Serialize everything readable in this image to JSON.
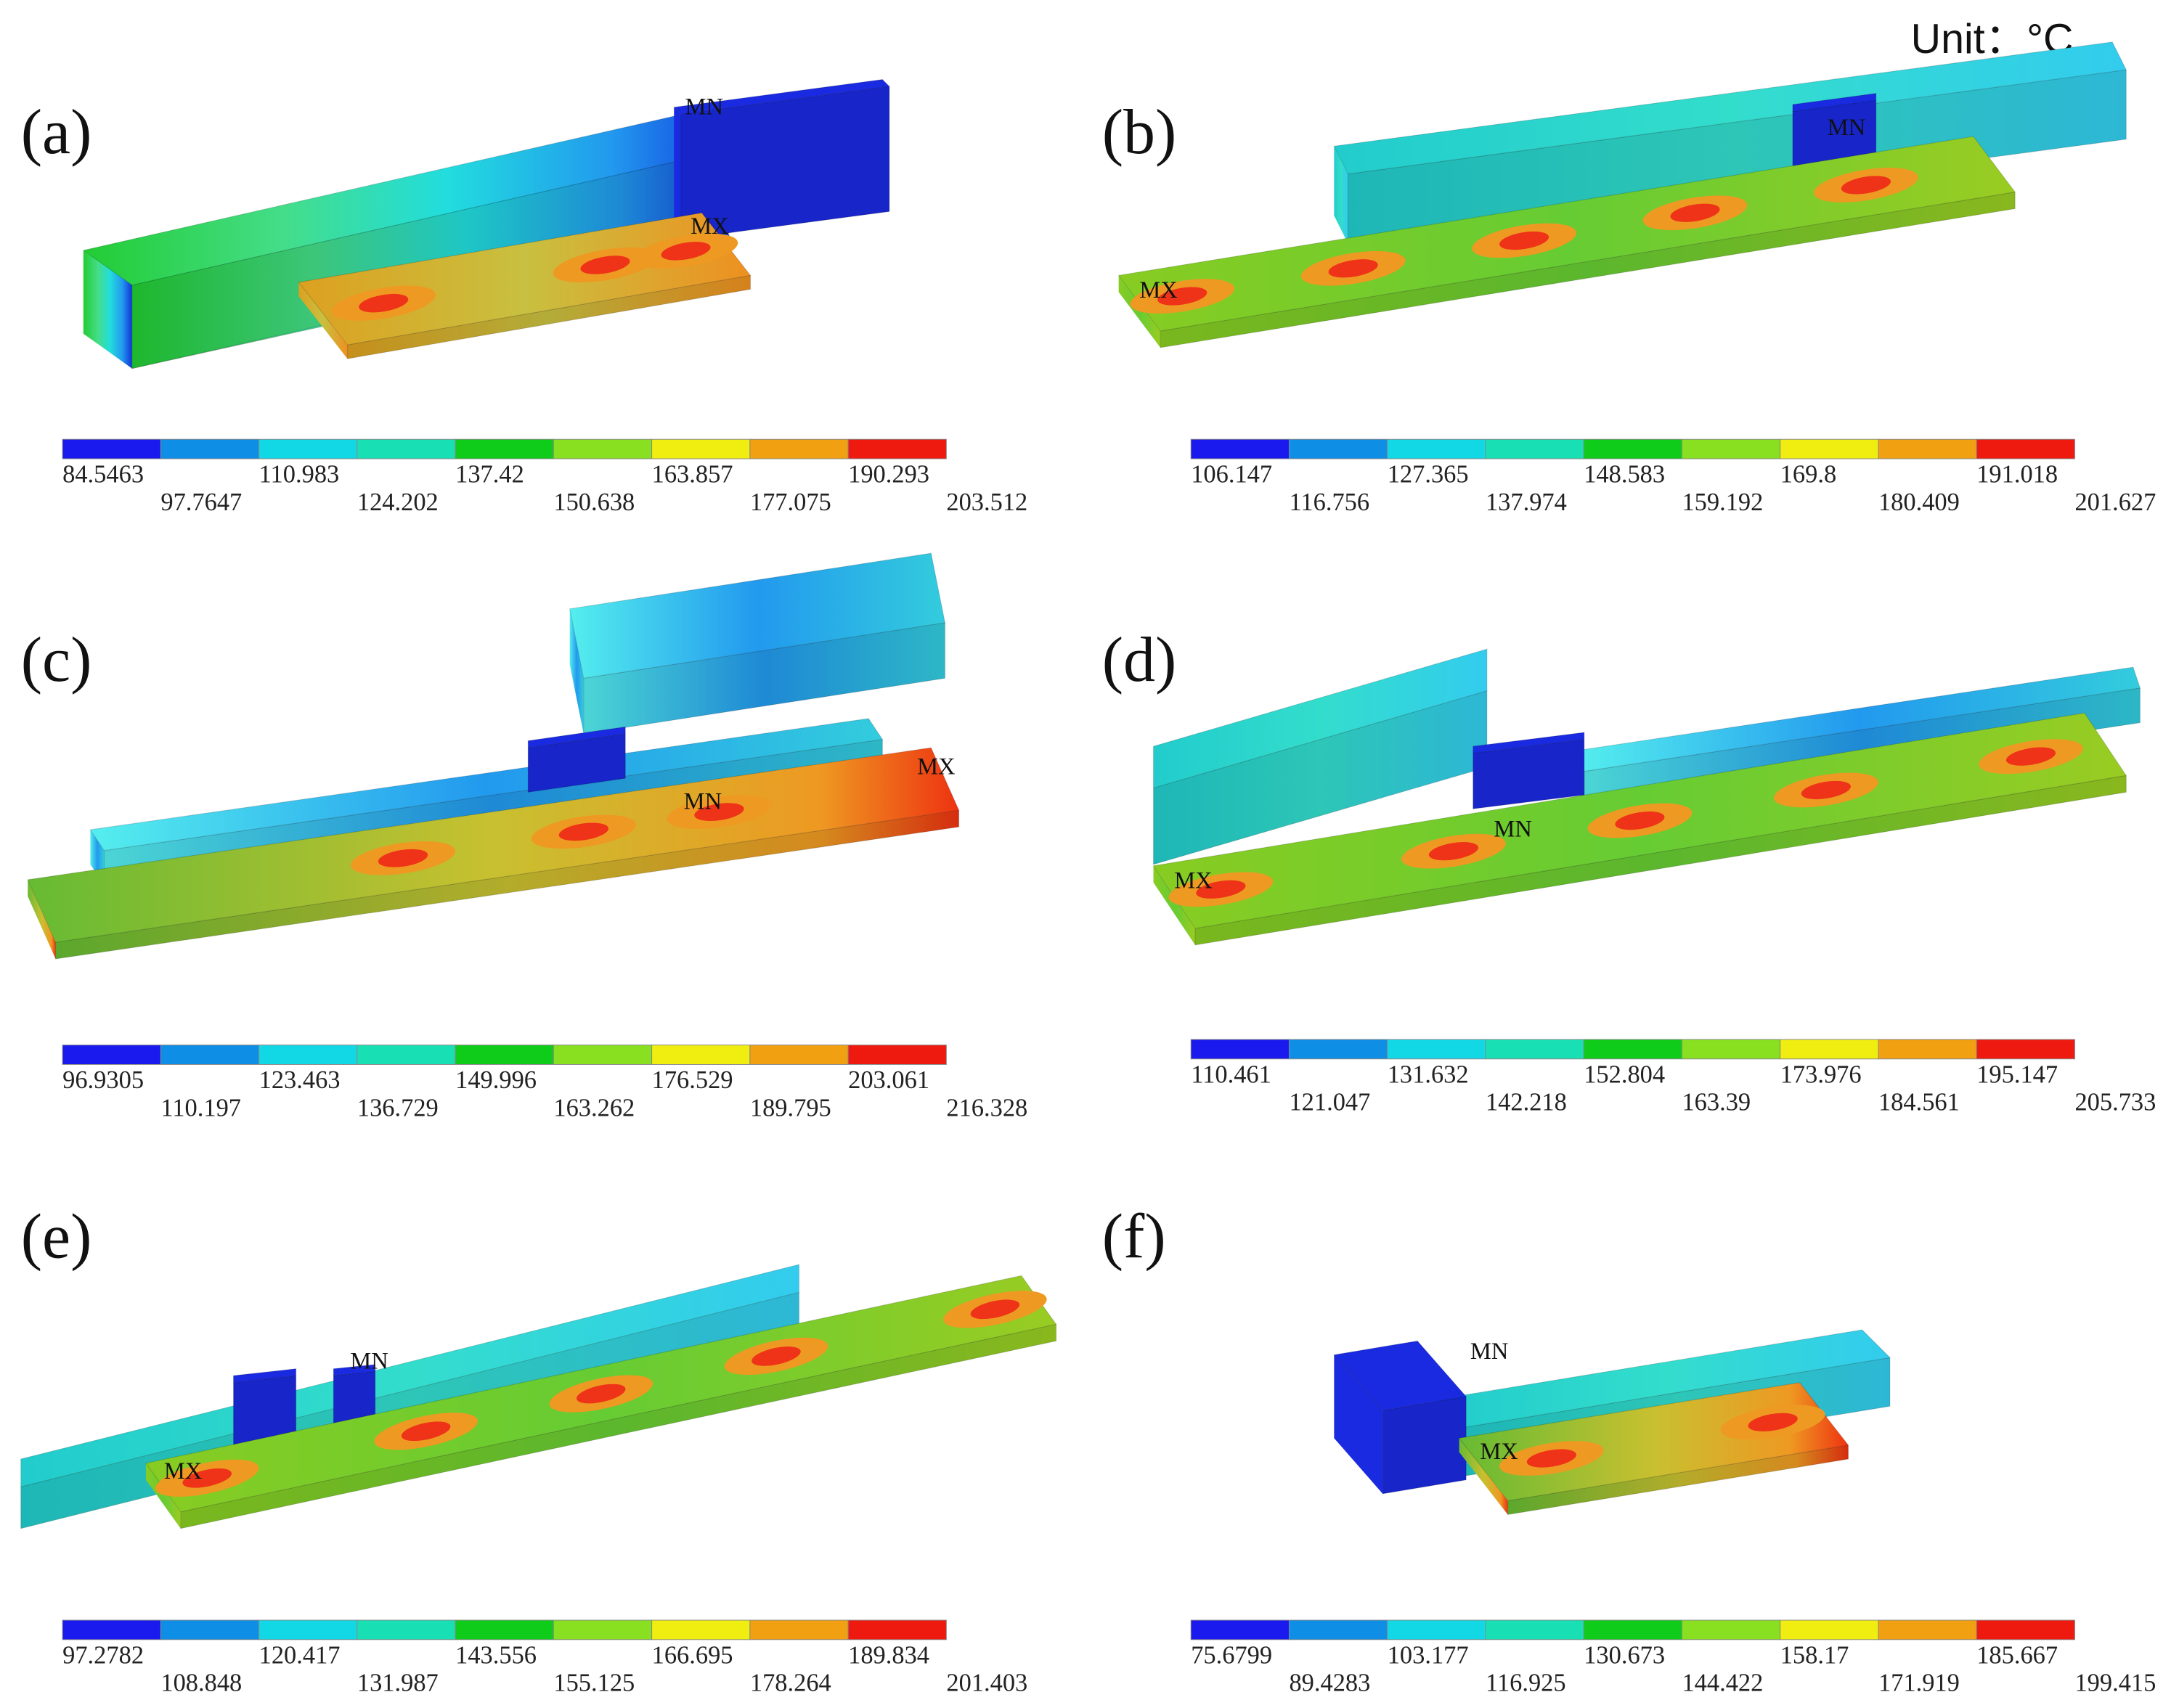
{
  "unit": "Unit：°C",
  "panels": [
    {
      "label": "(a)",
      "mn": "MN",
      "mx": "MX",
      "legend": [
        84.5463,
        97.7647,
        110.983,
        124.202,
        137.42,
        150.638,
        163.857,
        177.075,
        190.293,
        203.512
      ]
    },
    {
      "label": "(b)",
      "mn": "MN",
      "mx": "MX",
      "legend": [
        106.147,
        116.756,
        127.365,
        137.974,
        148.583,
        159.192,
        169.8,
        180.409,
        191.018,
        201.627
      ]
    },
    {
      "label": "(c)",
      "mn": "MN",
      "mx": "MX",
      "legend": [
        96.9305,
        110.197,
        123.463,
        136.729,
        149.996,
        163.262,
        176.529,
        189.795,
        203.061,
        216.328
      ]
    },
    {
      "label": "(d)",
      "mn": "MN",
      "mx": "MX",
      "legend": [
        110.461,
        121.047,
        131.632,
        142.218,
        152.804,
        163.39,
        173.976,
        184.561,
        195.147,
        205.733
      ]
    },
    {
      "label": "(e)",
      "mn": "MN",
      "mx": "MX",
      "legend": [
        97.2782,
        108.848,
        120.417,
        131.987,
        143.556,
        155.125,
        166.695,
        178.264,
        189.834,
        201.403
      ]
    },
    {
      "label": "(f)",
      "mn": "MN",
      "mx": "MX",
      "legend": [
        75.6799,
        89.4283,
        103.177,
        116.925,
        130.673,
        144.422,
        158.17,
        171.919,
        185.667,
        199.415
      ]
    }
  ]
}
